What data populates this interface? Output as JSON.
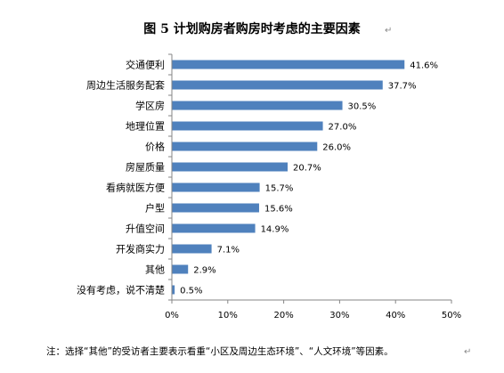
{
  "title": "图 5   计划购房者购房时考虑的主要因素",
  "note": "注：选择“其他”的受访者主要表示看重“小区及周边生态环境”、“人文环境”等因素。",
  "paragraph_mark": "↵",
  "colors": {
    "bar": "#4F81BD",
    "axis": "#868686",
    "text": "#000000"
  },
  "chart_data": {
    "type": "bar",
    "orientation": "horizontal",
    "title": "图 5   计划购房者购房时考虑的主要因素",
    "categories": [
      "交通便利",
      "周边生活服务配套",
      "学区房",
      "地理位置",
      "价格",
      "房屋质量",
      "看病就医方便",
      "户型",
      "升值空间",
      "开发商实力",
      "其他",
      "没有考虑，说不清楚"
    ],
    "values": [
      41.6,
      37.7,
      30.5,
      27.0,
      26.0,
      20.7,
      15.7,
      15.6,
      14.9,
      7.1,
      2.9,
      0.5
    ],
    "value_labels": [
      "41.6%",
      "37.7%",
      "30.5%",
      "27.0%",
      "26.0%",
      "20.7%",
      "15.7%",
      "15.6%",
      "14.9%",
      "7.1%",
      "2.9%",
      "0.5%"
    ],
    "xlim": [
      0,
      50
    ],
    "xticks": [
      0,
      10,
      20,
      30,
      40,
      50
    ],
    "xtick_labels": [
      "0%",
      "10%",
      "20%",
      "30%",
      "40%",
      "50%"
    ],
    "xlabel": "",
    "ylabel": "",
    "grid": false,
    "legend": "none"
  }
}
